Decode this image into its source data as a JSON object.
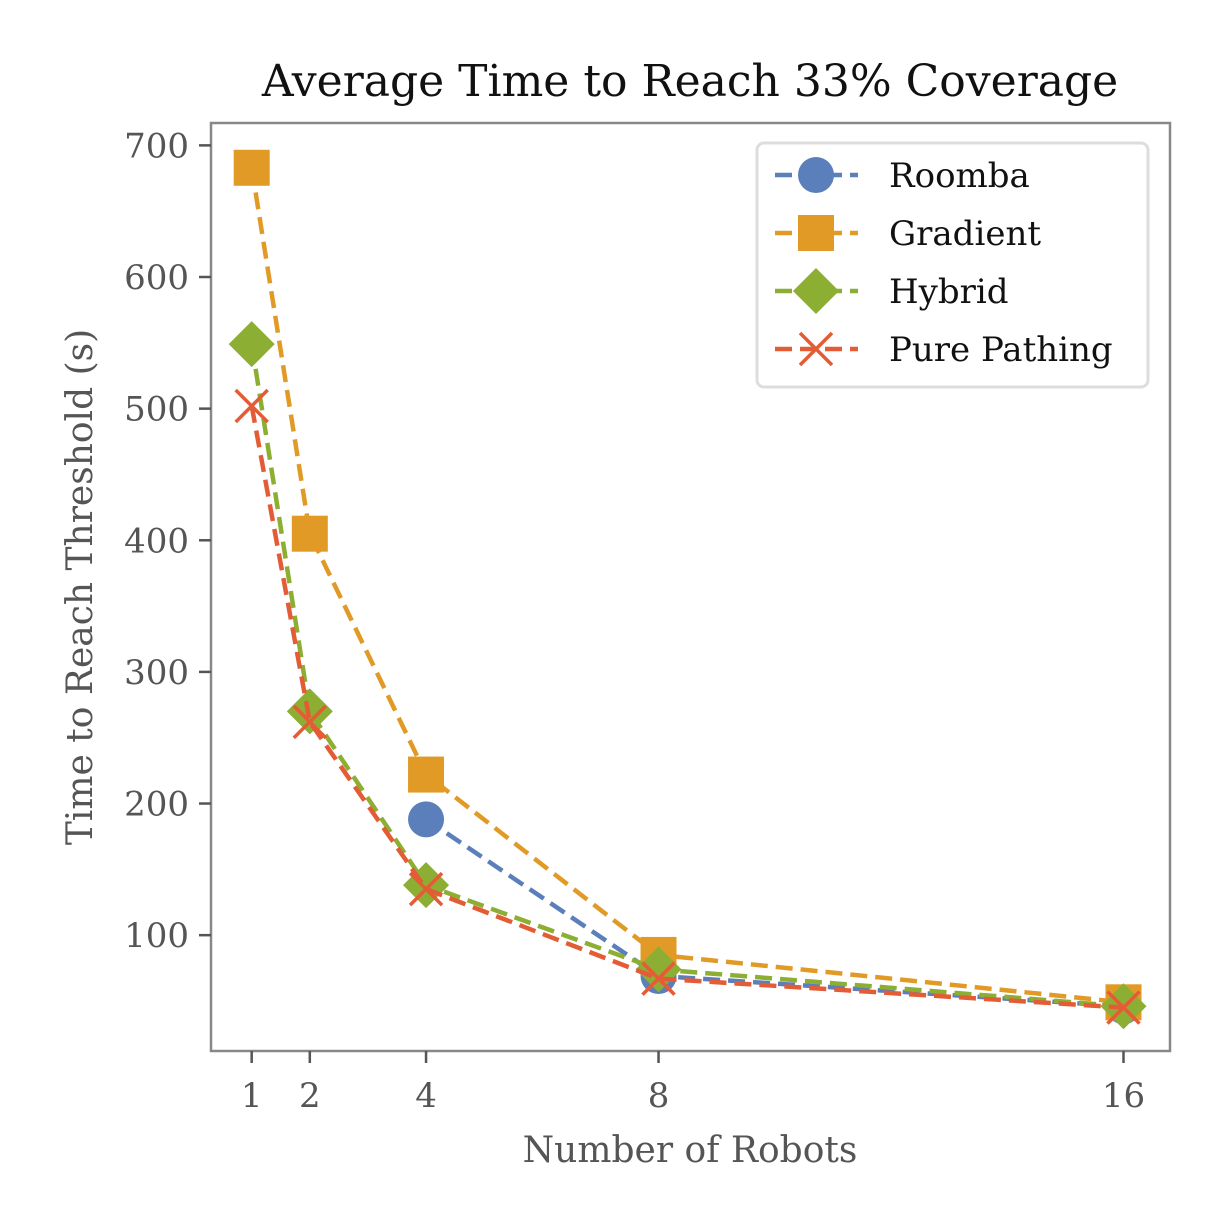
{
  "chart_data": {
    "type": "line",
    "title": "Average Time to Reach 33% Coverage",
    "xlabel": "Number of Robots",
    "ylabel": "Time to Reach Threshold (s)",
    "x_ticks": [
      1,
      2,
      4,
      8,
      16
    ],
    "x_tick_labels": [
      "1",
      "2",
      "4",
      "8",
      "16"
    ],
    "y_ticks": [
      100,
      200,
      300,
      400,
      500,
      600,
      700
    ],
    "y_tick_labels": [
      "100",
      "200",
      "300",
      "400",
      "500",
      "600",
      "700"
    ],
    "xlim": [
      0.3,
      16.8
    ],
    "ylim": [
      12,
      717
    ],
    "grid": false,
    "legend_position": "upper right",
    "series": [
      {
        "name": "Roomba",
        "color": "#5b7fba",
        "marker": "circle",
        "x": [
          4,
          8,
          16
        ],
        "y": [
          188,
          69,
          46
        ]
      },
      {
        "name": "Gradient",
        "color": "#e19a26",
        "marker": "square",
        "x": [
          1,
          2,
          4,
          8,
          16
        ],
        "y": [
          683,
          405,
          222,
          85,
          49
        ]
      },
      {
        "name": "Hybrid",
        "color": "#8cae33",
        "marker": "diamond",
        "x": [
          1,
          2,
          4,
          8,
          16
        ],
        "y": [
          549,
          270,
          138,
          74,
          46
        ]
      },
      {
        "name": "Pure Pathing",
        "color": "#e45c35",
        "marker": "x",
        "x": [
          1,
          2,
          4,
          8,
          16
        ],
        "y": [
          502,
          262,
          135,
          67,
          45
        ]
      }
    ]
  }
}
